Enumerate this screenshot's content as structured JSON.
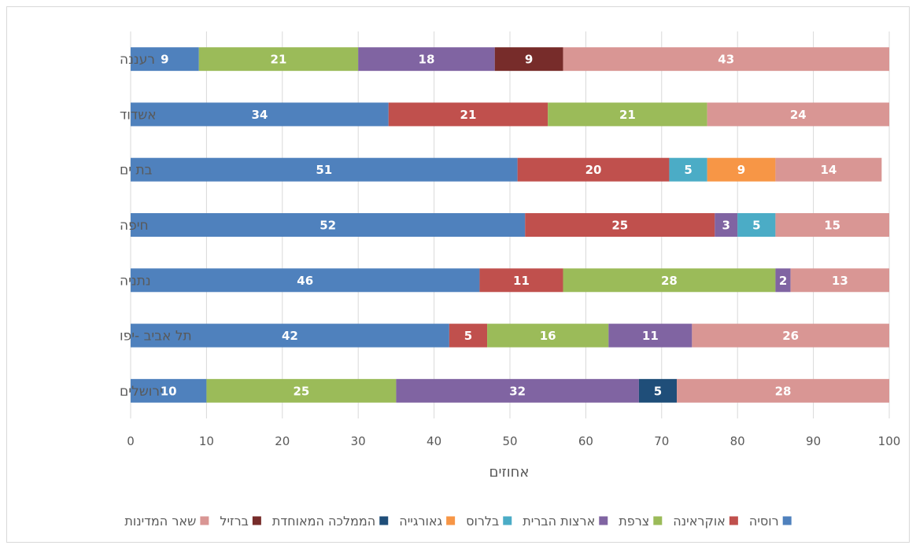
{
  "chart_data": {
    "type": "bar",
    "orientation": "horizontal",
    "stacked": true,
    "categories": [
      "רעננה",
      "אשדוד",
      "בת ים",
      "חיפה",
      "נתניה",
      "תל אביב -יפו",
      "ירושלים"
    ],
    "series": [
      {
        "name": "רוסיה",
        "color": "#4f81bd",
        "values": [
          9,
          34,
          51,
          52,
          46,
          42,
          10
        ]
      },
      {
        "name": "אוקראינה",
        "color": "#c0504d",
        "values": [
          0,
          21,
          20,
          25,
          11,
          5,
          0
        ]
      },
      {
        "name": "צרפת",
        "color": "#9bbb59",
        "values": [
          21,
          21,
          0,
          0,
          28,
          16,
          25
        ]
      },
      {
        "name": "ארצות הברית",
        "color": "#8064a2",
        "values": [
          18,
          0,
          0,
          3,
          2,
          11,
          32
        ]
      },
      {
        "name": "בלרוס",
        "color": "#4bacc6",
        "values": [
          0,
          0,
          5,
          5,
          0,
          0,
          0
        ]
      },
      {
        "name": "גאורגייה",
        "color": "#f79646",
        "values": [
          0,
          0,
          9,
          0,
          0,
          0,
          0
        ]
      },
      {
        "name": "הממלכה המאוחדת",
        "color": "#1f4e79",
        "values": [
          0,
          0,
          0,
          0,
          0,
          0,
          5
        ]
      },
      {
        "name": "ברזיל",
        "color": "#772c2a",
        "values": [
          9,
          0,
          0,
          0,
          0,
          0,
          0
        ]
      },
      {
        "name": "שאר המדינות",
        "color": "#d99694",
        "values": [
          43,
          24,
          14,
          15,
          13,
          26,
          28
        ]
      }
    ],
    "xlabel": "אחוזים",
    "xlim": [
      0,
      100
    ],
    "xticks": [
      0,
      10,
      20,
      30,
      40,
      50,
      60,
      70,
      80,
      90,
      100
    ],
    "grid": true,
    "legend_position": "bottom"
  }
}
